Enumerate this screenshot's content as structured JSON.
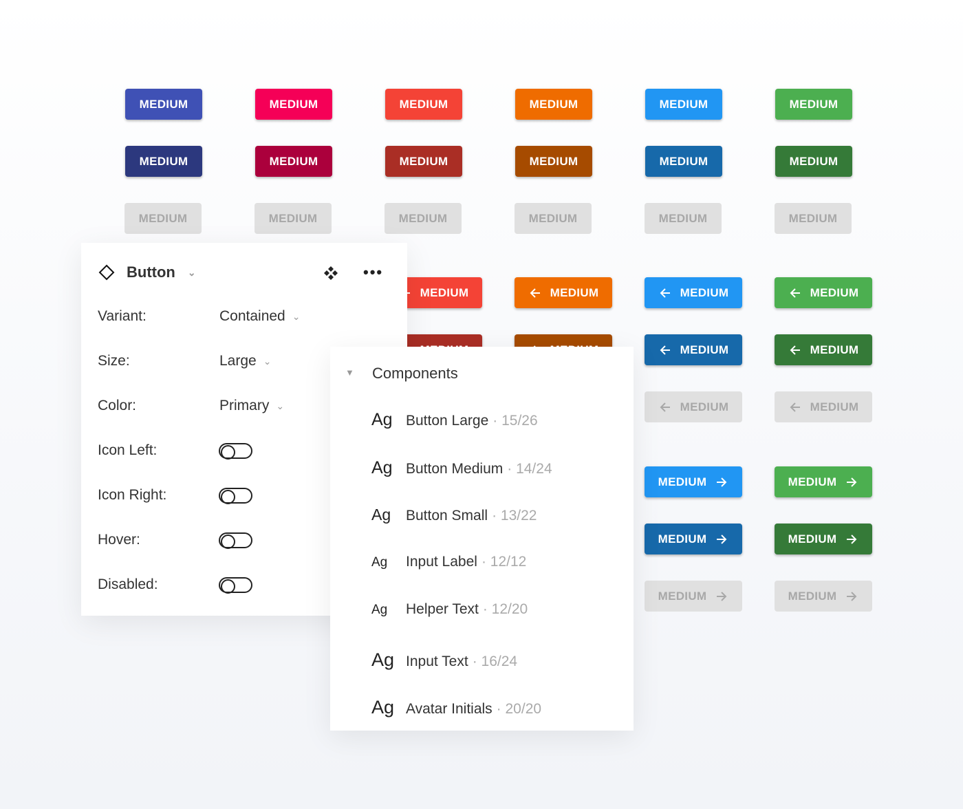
{
  "button_label": "MEDIUM",
  "colors": {
    "row1": [
      "#3f51b5",
      "#f50057",
      "#f44336",
      "#ef6c00",
      "#2196f3",
      "#4caf50"
    ],
    "row2": [
      "#2c387e",
      "#ab003c",
      "#aa2e25",
      "#a64b00",
      "#1769aa",
      "#357a38"
    ],
    "disabled": "#e0e0e0"
  },
  "props": {
    "title": "Button",
    "fields": [
      {
        "label": "Variant:",
        "value": "Contained"
      },
      {
        "label": "Size:",
        "value": "Large"
      },
      {
        "label": "Color:",
        "value": "Primary"
      }
    ],
    "toggles": [
      {
        "label": "Icon Left:",
        "on": false
      },
      {
        "label": "Icon Right:",
        "on": false
      },
      {
        "label": "Hover:",
        "on": false
      },
      {
        "label": "Disabled:",
        "on": false
      }
    ]
  },
  "components": {
    "title": "Components",
    "items": [
      {
        "ag": "Ag",
        "name": "Button Large",
        "spec": "· 15/26"
      },
      {
        "ag": "Ag",
        "name": "Button Medium",
        "spec": "· 14/24"
      },
      {
        "ag": "Ag",
        "name": "Button Small",
        "spec": "· 13/22"
      },
      {
        "ag": "Ag",
        "name": "Input Label",
        "spec": "· 12/12"
      },
      {
        "ag": "Ag",
        "name": "Helper Text",
        "spec": "· 12/20"
      },
      {
        "ag": "Ag",
        "name": "Input Text",
        "spec": "· 16/24"
      },
      {
        "ag": "Ag",
        "name": "Avatar Initials",
        "spec": "· 20/20"
      }
    ]
  }
}
